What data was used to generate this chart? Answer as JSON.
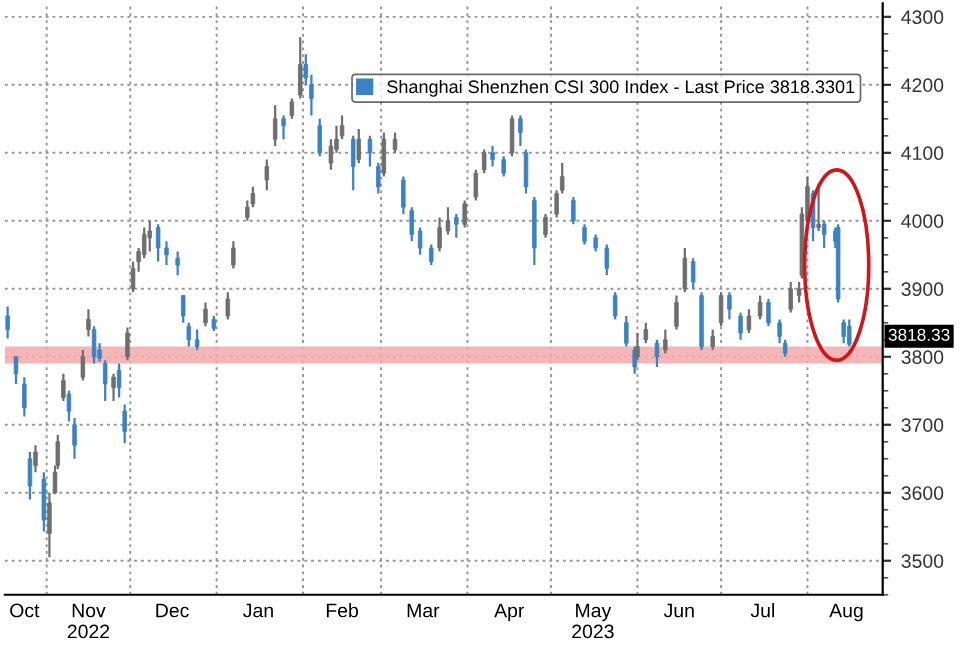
{
  "chart_data": {
    "type": "candlestick",
    "x": [
      "2022-10-18",
      "2022-10-21",
      "2022-10-24",
      "2022-10-26",
      "2022-10-28",
      "2022-10-31",
      "2022-11-02",
      "2022-11-04",
      "2022-11-05",
      "2022-11-07",
      "2022-11-09",
      "2022-11-11",
      "2022-11-14",
      "2022-11-16",
      "2022-11-18",
      "2022-11-20",
      "2022-11-22",
      "2022-11-25",
      "2022-11-27",
      "2022-11-29",
      "2022-11-30",
      "2022-12-02",
      "2022-12-04",
      "2022-12-06",
      "2022-12-08",
      "2022-12-11",
      "2022-12-14",
      "2022-12-18",
      "2022-12-20",
      "2022-12-22",
      "2022-12-25",
      "2022-12-28",
      "2022-12-31",
      "2023-01-05",
      "2023-01-07",
      "2023-01-12",
      "2023-01-14",
      "2023-01-19",
      "2023-01-22",
      "2023-01-25",
      "2023-01-28",
      "2023-01-31",
      "2023-02-02",
      "2023-02-04",
      "2023-02-07",
      "2023-02-11",
      "2023-02-13",
      "2023-02-15",
      "2023-02-19",
      "2023-02-21",
      "2023-02-25",
      "2023-02-28",
      "2023-03-02",
      "2023-03-06",
      "2023-03-09",
      "2023-03-12",
      "2023-03-15",
      "2023-03-19",
      "2023-03-22",
      "2023-03-25",
      "2023-03-28",
      "2023-03-31",
      "2023-04-04",
      "2023-04-07",
      "2023-04-10",
      "2023-04-14",
      "2023-04-17",
      "2023-04-20",
      "2023-04-22",
      "2023-04-25",
      "2023-04-29",
      "2023-05-03",
      "2023-05-05",
      "2023-05-09",
      "2023-05-13",
      "2023-05-17",
      "2023-05-21",
      "2023-05-24",
      "2023-05-28",
      "2023-05-31",
      "2023-06-01",
      "2023-06-04",
      "2023-06-08",
      "2023-06-11",
      "2023-06-15",
      "2023-06-18",
      "2023-06-21",
      "2023-06-24",
      "2023-06-28",
      "2023-07-01",
      "2023-07-04",
      "2023-07-08",
      "2023-07-11",
      "2023-07-15",
      "2023-07-18",
      "2023-07-22",
      "2023-07-24",
      "2023-07-26",
      "2023-07-29",
      "2023-07-30",
      "2023-08-01",
      "2023-08-03",
      "2023-08-05",
      "2023-08-07",
      "2023-08-11",
      "2023-08-12",
      "2023-08-14",
      "2023-08-16"
    ],
    "series": [
      {
        "name": "Shanghai Shenzhen CSI 300 Index - Last Price 3818.3301",
        "ohlc": [
          [
            3860,
            3874,
            3827,
            3840
          ],
          [
            3800,
            3800,
            3760,
            3775
          ],
          [
            3760,
            3770,
            3712,
            3725
          ],
          [
            3650,
            3660,
            3590,
            3610
          ],
          [
            3640,
            3670,
            3630,
            3660
          ],
          [
            3620,
            3630,
            3543,
            3560
          ],
          [
            3540,
            3600,
            3505,
            3585
          ],
          [
            3600,
            3640,
            3598,
            3630
          ],
          [
            3640,
            3685,
            3635,
            3675
          ],
          [
            3740,
            3775,
            3735,
            3765
          ],
          [
            3745,
            3750,
            3705,
            3720
          ],
          [
            3700,
            3710,
            3650,
            3670
          ],
          [
            3770,
            3810,
            3765,
            3800
          ],
          [
            3840,
            3870,
            3830,
            3855
          ],
          [
            3840,
            3845,
            3790,
            3800
          ],
          [
            3810,
            3820,
            3793,
            3798
          ],
          [
            3790,
            3795,
            3735,
            3760
          ],
          [
            3755,
            3775,
            3735,
            3770
          ],
          [
            3780,
            3790,
            3740,
            3755
          ],
          [
            3720,
            3730,
            3673,
            3690
          ],
          [
            3800,
            3843,
            3795,
            3835
          ],
          [
            3900,
            3940,
            3895,
            3930
          ],
          [
            3940,
            3960,
            3925,
            3955
          ],
          [
            3950,
            3990,
            3945,
            3980
          ],
          [
            3975,
            4000,
            3955,
            3985
          ],
          [
            3990,
            3995,
            3940,
            3960
          ],
          [
            3960,
            3970,
            3935,
            3950
          ],
          [
            3945,
            3955,
            3920,
            3935
          ],
          [
            3890,
            3890,
            3850,
            3860
          ],
          [
            3845,
            3850,
            3815,
            3825
          ],
          [
            3825,
            3840,
            3810,
            3815
          ],
          [
            3850,
            3880,
            3845,
            3870
          ],
          [
            3855,
            3860,
            3838,
            3842
          ],
          [
            3860,
            3895,
            3855,
            3885
          ],
          [
            3935,
            3970,
            3930,
            3960
          ],
          [
            4005,
            4030,
            4000,
            4020
          ],
          [
            4025,
            4050,
            4020,
            4040
          ],
          [
            4060,
            4090,
            4045,
            4080
          ],
          [
            4120,
            4170,
            4110,
            4150
          ],
          [
            4150,
            4155,
            4120,
            4140
          ],
          [
            4155,
            4180,
            4150,
            4175
          ],
          [
            4185,
            4270,
            4180,
            4230
          ],
          [
            4230,
            4245,
            4200,
            4210
          ],
          [
            4200,
            4215,
            4155,
            4180
          ],
          [
            4140,
            4150,
            4095,
            4100
          ],
          [
            4085,
            4120,
            4075,
            4110
          ],
          [
            4105,
            4140,
            4100,
            4120
          ],
          [
            4125,
            4155,
            4120,
            4140
          ],
          [
            4120,
            4125,
            4045,
            4080
          ],
          [
            4090,
            4135,
            4085,
            4120
          ],
          [
            4120,
            4125,
            4080,
            4100
          ],
          [
            4080,
            4085,
            4040,
            4050
          ],
          [
            4070,
            4130,
            4065,
            4120
          ],
          [
            4105,
            4130,
            4100,
            4120
          ],
          [
            4060,
            4065,
            4010,
            4020
          ],
          [
            4015,
            4020,
            3970,
            3980
          ],
          [
            3985,
            3990,
            3950,
            3960
          ],
          [
            3960,
            3965,
            3935,
            3940
          ],
          [
            3960,
            4005,
            3955,
            3990
          ],
          [
            3985,
            4020,
            3980,
            4000
          ],
          [
            4005,
            4010,
            3975,
            3995
          ],
          [
            3995,
            4030,
            3990,
            4025
          ],
          [
            4035,
            4075,
            4030,
            4070
          ],
          [
            4075,
            4105,
            4070,
            4100
          ],
          [
            4100,
            4110,
            4080,
            4090
          ],
          [
            4090,
            4095,
            4065,
            4070
          ],
          [
            4100,
            4155,
            4095,
            4150
          ],
          [
            4150,
            4155,
            4110,
            4130
          ],
          [
            4100,
            4105,
            4040,
            4050
          ],
          [
            4030,
            4035,
            3935,
            3960
          ],
          [
            3980,
            4010,
            3975,
            4005
          ],
          [
            4010,
            4045,
            4005,
            4040
          ],
          [
            4045,
            4085,
            4040,
            4065
          ],
          [
            4030,
            4035,
            3995,
            4000
          ],
          [
            3990,
            3995,
            3965,
            3970
          ],
          [
            3975,
            3980,
            3955,
            3960
          ],
          [
            3960,
            3965,
            3920,
            3930
          ],
          [
            3890,
            3895,
            3855,
            3860
          ],
          [
            3850,
            3860,
            3815,
            3820
          ],
          [
            3810,
            3815,
            3775,
            3785
          ],
          [
            3800,
            3835,
            3795,
            3815
          ],
          [
            3825,
            3850,
            3820,
            3840
          ],
          [
            3820,
            3825,
            3785,
            3800
          ],
          [
            3810,
            3840,
            3805,
            3825
          ],
          [
            3845,
            3890,
            3840,
            3880
          ],
          [
            3900,
            3960,
            3895,
            3945
          ],
          [
            3940,
            3945,
            3900,
            3910
          ],
          [
            3890,
            3895,
            3810,
            3815
          ],
          [
            3815,
            3840,
            3810,
            3830
          ],
          [
            3850,
            3895,
            3845,
            3890
          ],
          [
            3890,
            3895,
            3855,
            3870
          ],
          [
            3860,
            3865,
            3825,
            3835
          ],
          [
            3840,
            3870,
            3835,
            3860
          ],
          [
            3860,
            3890,
            3855,
            3880
          ],
          [
            3880,
            3885,
            3845,
            3850
          ],
          [
            3850,
            3855,
            3820,
            3830
          ],
          [
            3820,
            3825,
            3800,
            3805
          ],
          [
            3870,
            3910,
            3865,
            3900
          ],
          [
            3890,
            3910,
            3880,
            3900
          ],
          [
            3920,
            4020,
            3915,
            4010
          ],
          [
            4000,
            4065,
            3995,
            4050
          ],
          [
            4040,
            4045,
            3970,
            3990
          ],
          [
            3990,
            4055,
            3985,
            3995
          ],
          [
            3995,
            4000,
            3960,
            3980
          ],
          [
            3985,
            3990,
            3960,
            3970
          ],
          [
            3990,
            3995,
            3880,
            3885
          ],
          [
            3850,
            3855,
            3820,
            3830
          ],
          [
            3845,
            3855,
            3815,
            3818.33
          ]
        ],
        "colors": [
          "#3b82c4",
          "#3b82c4",
          "#3b82c4",
          "#3b82c4",
          "#6e6e6e",
          "#3b82c4",
          "#6e6e6e",
          "#6e6e6e",
          "#6e6e6e",
          "#6e6e6e",
          "#3b82c4",
          "#3b82c4",
          "#6e6e6e",
          "#6e6e6e",
          "#3b82c4",
          "#3b82c4",
          "#3b82c4",
          "#6e6e6e",
          "#3b82c4",
          "#3b82c4",
          "#6e6e6e",
          "#6e6e6e",
          "#6e6e6e",
          "#6e6e6e",
          "#6e6e6e",
          "#3b82c4",
          "#3b82c4",
          "#3b82c4",
          "#3b82c4",
          "#3b82c4",
          "#3b82c4",
          "#6e6e6e",
          "#3b82c4",
          "#6e6e6e",
          "#6e6e6e",
          "#6e6e6e",
          "#6e6e6e",
          "#6e6e6e",
          "#6e6e6e",
          "#3b82c4",
          "#6e6e6e",
          "#6e6e6e",
          "#3b82c4",
          "#3b82c4",
          "#3b82c4",
          "#6e6e6e",
          "#6e6e6e",
          "#6e6e6e",
          "#3b82c4",
          "#6e6e6e",
          "#3b82c4",
          "#3b82c4",
          "#6e6e6e",
          "#6e6e6e",
          "#3b82c4",
          "#3b82c4",
          "#3b82c4",
          "#3b82c4",
          "#6e6e6e",
          "#6e6e6e",
          "#3b82c4",
          "#6e6e6e",
          "#6e6e6e",
          "#6e6e6e",
          "#3b82c4",
          "#3b82c4",
          "#6e6e6e",
          "#3b82c4",
          "#3b82c4",
          "#3b82c4",
          "#6e6e6e",
          "#6e6e6e",
          "#6e6e6e",
          "#3b82c4",
          "#3b82c4",
          "#3b82c4",
          "#3b82c4",
          "#3b82c4",
          "#3b82c4",
          "#3b82c4",
          "#6e6e6e",
          "#6e6e6e",
          "#3b82c4",
          "#6e6e6e",
          "#6e6e6e",
          "#6e6e6e",
          "#3b82c4",
          "#3b82c4",
          "#6e6e6e",
          "#6e6e6e",
          "#3b82c4",
          "#3b82c4",
          "#6e6e6e",
          "#6e6e6e",
          "#3b82c4",
          "#3b82c4",
          "#3b82c4",
          "#6e6e6e",
          "#6e6e6e",
          "#6e6e6e",
          "#6e6e6e",
          "#3b82c4",
          "#6e6e6e",
          "#3b82c4",
          "#3b82c4",
          "#3b82c4",
          "#3b82c4",
          "#3b82c4"
        ]
      }
    ],
    "xlim": [
      "2022-10-17",
      "2023-08-28"
    ],
    "xticks": [
      {
        "value": "2022-10-24",
        "label": "Oct"
      },
      {
        "value": "2022-11-01",
        "label": null
      },
      {
        "value": "2022-11-16",
        "label": "Nov\n2022"
      },
      {
        "value": "2022-12-01",
        "label": null
      },
      {
        "value": "2022-12-16",
        "label": "Dec"
      },
      {
        "value": "2023-01-01",
        "label": null
      },
      {
        "value": "2023-01-16",
        "label": "Jan"
      },
      {
        "value": "2023-02-01",
        "label": null
      },
      {
        "value": "2023-02-15",
        "label": "Feb"
      },
      {
        "value": "2023-03-01",
        "label": null
      },
      {
        "value": "2023-03-16",
        "label": "Mar"
      },
      {
        "value": "2023-04-01",
        "label": null
      },
      {
        "value": "2023-04-16",
        "label": "Apr"
      },
      {
        "value": "2023-05-01",
        "label": null
      },
      {
        "value": "2023-05-16",
        "label": "May\n2023"
      },
      {
        "value": "2023-06-01",
        "label": null
      },
      {
        "value": "2023-06-16",
        "label": "Jun"
      },
      {
        "value": "2023-07-01",
        "label": null
      },
      {
        "value": "2023-07-16",
        "label": "Jul"
      },
      {
        "value": "2023-08-01",
        "label": null
      },
      {
        "value": "2023-08-15",
        "label": "Aug"
      }
    ],
    "ylim": [
      3450,
      4320
    ],
    "yticks": [
      3500,
      3600,
      3700,
      3800,
      3900,
      4000,
      4100,
      4200,
      4300
    ],
    "bands": [
      {
        "axis": "y",
        "from": 3790,
        "to": 3815,
        "label": null,
        "color": "#f4a9ab"
      }
    ],
    "annotations": [
      "3818.33"
    ],
    "grid": true,
    "legend": "top right"
  }
}
